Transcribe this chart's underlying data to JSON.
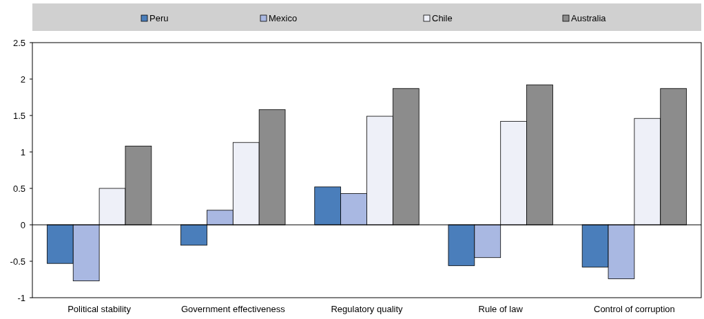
{
  "chart_data": {
    "type": "bar",
    "categories": [
      "Political stability",
      "Government effectiveness",
      "Regulatory quality",
      "Rule of law",
      "Control of corruption"
    ],
    "series": [
      {
        "name": "Peru",
        "color": "#4a7ebb",
        "values": [
          -0.53,
          -0.28,
          0.52,
          -0.56,
          -0.58
        ]
      },
      {
        "name": "Mexico",
        "color": "#a9b8e2",
        "values": [
          -0.77,
          0.2,
          0.43,
          -0.45,
          -0.74
        ]
      },
      {
        "name": "Chile",
        "color": "#eef0f8",
        "values": [
          0.5,
          1.13,
          1.49,
          1.42,
          1.46
        ]
      },
      {
        "name": "Australia",
        "color": "#8c8c8c",
        "values": [
          1.08,
          1.58,
          1.87,
          1.92,
          1.87
        ]
      }
    ],
    "ylim": [
      -1,
      2.5
    ],
    "yticks": [
      -1,
      -0.5,
      0,
      0.5,
      1,
      1.5,
      2,
      2.5
    ],
    "legend": "top"
  }
}
